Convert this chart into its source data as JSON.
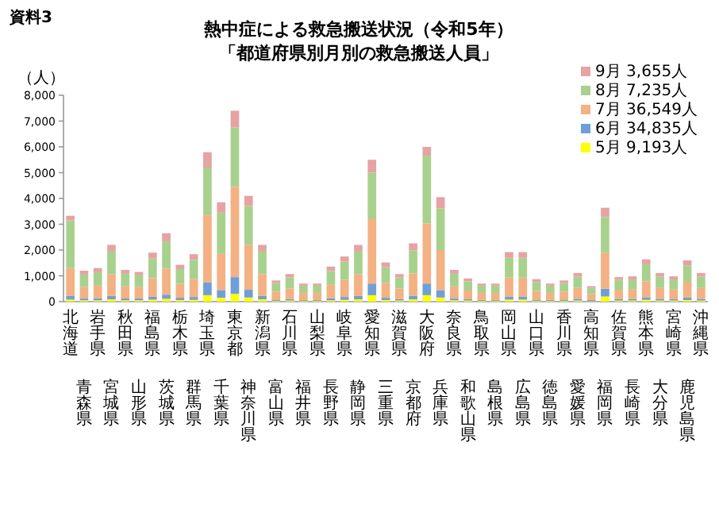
{
  "chart_data": {
    "type": "bar",
    "stacked": true,
    "title": "熱中症による救急搬送状況（令和5年）",
    "subtitle": "「都道府県別月別の救急搬送人員」",
    "ylabel": "（人）",
    "annotations": [
      "資料3"
    ],
    "categories": [
      "北海道",
      "青森県",
      "岩手県",
      "宮城県",
      "秋田県",
      "山形県",
      "福島県",
      "茨城県",
      "栃木県",
      "群馬県",
      "埼玉県",
      "千葉県",
      "東京都",
      "神奈川県",
      "新潟県",
      "富山県",
      "石川県",
      "福井県",
      "山梨県",
      "長野県",
      "岐阜県",
      "静岡県",
      "愛知県",
      "三重県",
      "滋賀県",
      "京都府",
      "大阪府",
      "兵庫県",
      "奈良県",
      "和歌山県",
      "鳥取県",
      "島根県",
      "岡山県",
      "広島県",
      "山口県",
      "徳島県",
      "香川県",
      "愛媛県",
      "高知県",
      "福岡県",
      "佐賀県",
      "長崎県",
      "熊本県",
      "大分県",
      "宮崎県",
      "鹿児島県",
      "沖縄県"
    ],
    "series": [
      {
        "name": "5月 9,193人",
        "color": "#ffff00",
        "values": [
          80,
          50,
          50,
          90,
          50,
          50,
          80,
          110,
          60,
          70,
          250,
          150,
          300,
          160,
          90,
          30,
          40,
          30,
          30,
          50,
          70,
          90,
          250,
          60,
          40,
          90,
          250,
          160,
          50,
          40,
          30,
          30,
          80,
          80,
          30,
          30,
          30,
          40,
          20,
          200,
          40,
          40,
          70,
          40,
          40,
          60,
          40
        ]
      },
      {
        "name": "6月 34,835人",
        "color": "#6f9fd8",
        "values": [
          150,
          70,
          80,
          130,
          70,
          70,
          110,
          160,
          90,
          110,
          500,
          300,
          650,
          300,
          130,
          50,
          60,
          40,
          40,
          80,
          110,
          130,
          450,
          90,
          60,
          140,
          450,
          280,
          70,
          50,
          40,
          40,
          120,
          120,
          50,
          40,
          50,
          70,
          40,
          300,
          60,
          60,
          100,
          70,
          60,
          100,
          70
        ]
      },
      {
        "name": "7月 36,549人",
        "color": "#f4b183",
        "values": [
          1070,
          450,
          490,
          840,
          470,
          440,
          720,
          1010,
          540,
          700,
          2600,
          1400,
          3500,
          1750,
          840,
          310,
          410,
          270,
          270,
          520,
          670,
          840,
          2500,
          580,
          410,
          860,
          2330,
          1560,
          470,
          340,
          270,
          270,
          730,
          730,
          330,
          270,
          310,
          420,
          230,
          1400,
          360,
          370,
          620,
          420,
          370,
          610,
          420
        ]
      },
      {
        "name": "8月 7,235人",
        "color": "#a9d18e",
        "values": [
          1850,
          480,
          520,
          880,
          490,
          460,
          760,
          1060,
          570,
          740,
          1850,
          1600,
          2300,
          1500,
          880,
          330,
          430,
          280,
          280,
          540,
          700,
          880,
          1800,
          610,
          430,
          900,
          2630,
          1620,
          490,
          360,
          280,
          280,
          770,
          770,
          350,
          280,
          330,
          440,
          240,
          1380,
          380,
          390,
          660,
          440,
          390,
          640,
          440
        ]
      },
      {
        "name": "9月 3,655人",
        "color": "#e6a3a3",
        "values": [
          180,
          150,
          160,
          260,
          150,
          130,
          230,
          310,
          170,
          220,
          590,
          400,
          650,
          390,
          260,
          100,
          130,
          80,
          80,
          170,
          200,
          260,
          500,
          180,
          130,
          270,
          340,
          430,
          150,
          110,
          80,
          80,
          220,
          220,
          110,
          80,
          100,
          140,
          70,
          360,
          110,
          120,
          190,
          140,
          120,
          190,
          140
        ]
      }
    ],
    "ylim": [
      0,
      8000
    ],
    "yticks": [
      0,
      {
        "value": 1000,
        "label": "1,000"
      },
      {
        "value": 2000,
        "label": "2,000"
      },
      {
        "value": 3000,
        "label": "3,000"
      },
      {
        "value": 4000,
        "label": "4,000"
      },
      {
        "value": 5000,
        "label": "5,000"
      },
      {
        "value": 6000,
        "label": "6,000"
      },
      {
        "value": 7000,
        "label": "7,000"
      },
      {
        "value": 8000,
        "label": "8,000"
      }
    ],
    "legend": "top right"
  }
}
